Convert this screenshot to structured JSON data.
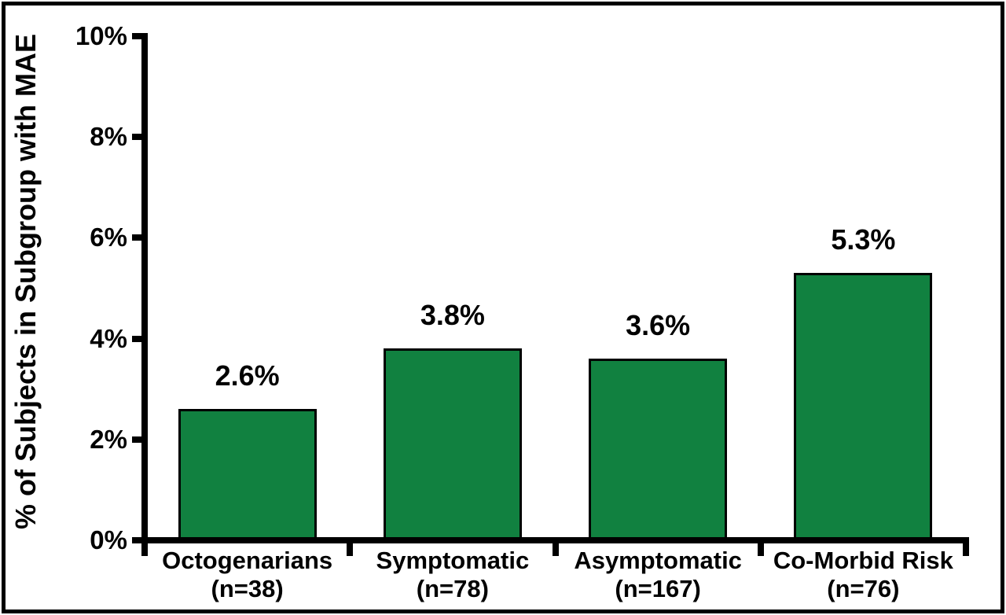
{
  "chart_data": {
    "type": "bar",
    "title": "",
    "xlabel": "",
    "ylabel": "% of Subjects in Subgroup with MAE",
    "ylim": [
      0,
      10
    ],
    "ytick_values": [
      0,
      2,
      4,
      6,
      8,
      10
    ],
    "ytick_labels": [
      "0%",
      "2%",
      "4%",
      "6%",
      "8%",
      "10%"
    ],
    "grid": false,
    "legend": false,
    "bar_color": "#118140",
    "bar_border_color": "#000000",
    "axis_color": "#000000",
    "categories": [
      {
        "label": "Octogenarians",
        "n_label": "(n=38)",
        "value": 2.6,
        "value_label": "2.6%"
      },
      {
        "label": "Symptomatic",
        "n_label": "(n=78)",
        "value": 3.8,
        "value_label": "3.8%"
      },
      {
        "label": "Asymptomatic",
        "n_label": "(n=167)",
        "value": 3.6,
        "value_label": "3.6%"
      },
      {
        "label": "Co-Morbid Risk",
        "n_label": "(n=76)",
        "value": 5.3,
        "value_label": "5.3%"
      }
    ]
  }
}
